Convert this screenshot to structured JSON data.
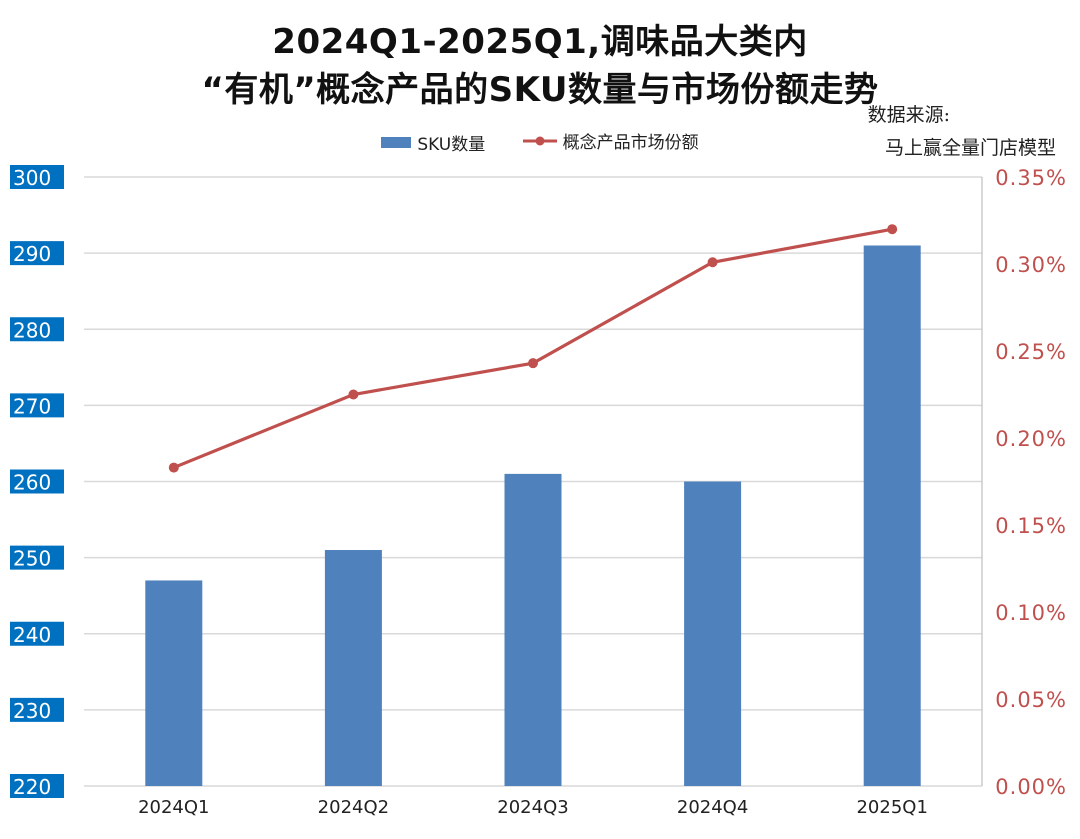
{
  "title_line1": "2024Q1-2025Q1,调味品大类内",
  "title_line2": "“有机”概念产品的SKU数量与市场份额走势",
  "source_line1": "数据来源:",
  "source_line2": "马上赢全量门店模型",
  "colors": {
    "bar": "#4f81bd",
    "line": "#c0504d",
    "left_tick_bg": "#0070c0",
    "grid": "#d9d9d9"
  },
  "chart_data": {
    "type": "bar",
    "categories": [
      "2024Q1",
      "2024Q2",
      "2024Q3",
      "2024Q4",
      "2025Q1"
    ],
    "series": [
      {
        "name": "SKU数量",
        "type": "bar",
        "axis": "left",
        "values": [
          247,
          251,
          261,
          260,
          291
        ]
      },
      {
        "name": "概念产品市场份额",
        "type": "line",
        "axis": "right",
        "values": [
          0.00183,
          0.00225,
          0.00243,
          0.00301,
          0.0032
        ]
      }
    ],
    "y_left": {
      "range": [
        220,
        300
      ],
      "ticks": [
        "220",
        "230",
        "240",
        "250",
        "260",
        "270",
        "280",
        "290",
        "300"
      ]
    },
    "y_right": {
      "range": [
        0,
        0.0035
      ],
      "ticks": [
        "0.00%",
        "0.05%",
        "0.10%",
        "0.15%",
        "0.20%",
        "0.25%",
        "0.30%",
        "0.35%"
      ]
    },
    "grid": true,
    "legend_position": "top"
  }
}
